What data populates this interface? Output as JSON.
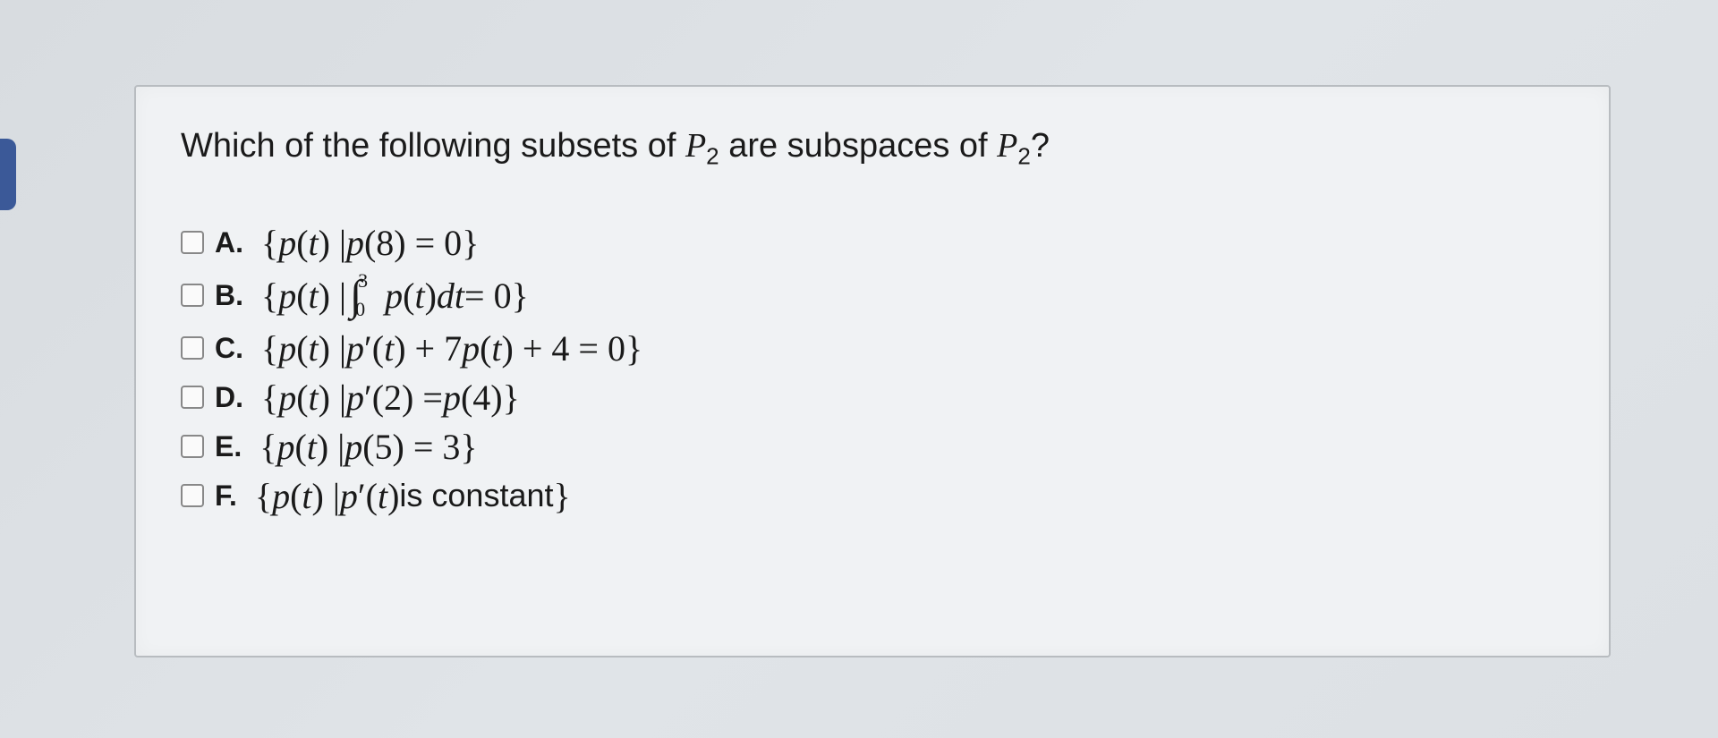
{
  "colors": {
    "background": "#e0e4e8",
    "box_bg": "#f0f2f4",
    "box_border": "#b8bcc0",
    "text": "#1a1a1a",
    "checkbox_border": "#888888",
    "left_indicator": "#3b5998"
  },
  "typography": {
    "question_fontsize": 38,
    "option_label_fontsize": 32,
    "option_math_fontsize": 40,
    "font_family_sans": "Arial",
    "font_family_serif": "Times New Roman"
  },
  "question": {
    "prefix": "Which of the following subsets of ",
    "set1_var": "P",
    "set1_sub": "2",
    "middle": " are subspaces of ",
    "set2_var": "P",
    "set2_sub": "2",
    "suffix": "?"
  },
  "options": {
    "A": {
      "label": "A.",
      "open": "{",
      "p": "p",
      "t1": "(",
      "tvar1": "t",
      "t2": ") | ",
      "p2": "p",
      "arg": "(8) = 0",
      "close": "}"
    },
    "B": {
      "label": "B.",
      "open": "{",
      "p": "p",
      "t1": "(",
      "tvar1": "t",
      "t2": ") |  ",
      "int_upper": "3",
      "int_lower": "0",
      "p2": "p",
      "t3": "(",
      "tvar2": "t",
      "t4": ")",
      "d": "d",
      "tvar3": "t",
      "eq": " = 0",
      "close": "}"
    },
    "C": {
      "label": "C.",
      "open": "{",
      "p": "p",
      "t1": "(",
      "tvar1": "t",
      "t2": ") | ",
      "p2": "p",
      "prime1": "′",
      "t3": "(",
      "tvar2": "t",
      "t4": ") + 7",
      "p3": "p",
      "t5": "(",
      "tvar3": "t",
      "t6": ") + 4 = 0",
      "close": "}"
    },
    "D": {
      "label": "D.",
      "open": "{",
      "p": "p",
      "t1": "(",
      "tvar1": "t",
      "t2": ") | ",
      "p2": "p",
      "prime1": "′",
      "arg1": "(2) = ",
      "p3": "p",
      "arg2": "(4)",
      "close": "}"
    },
    "E": {
      "label": "E.",
      "open": "{",
      "p": "p",
      "t1": "(",
      "tvar1": "t",
      "t2": ") | ",
      "p2": "p",
      "arg": "(5) = 3",
      "close": "}"
    },
    "F": {
      "label": "F.",
      "open": "{",
      "p": "p",
      "t1": "(",
      "tvar1": "t",
      "t2": ") | ",
      "p2": "p",
      "prime1": "′",
      "t3": "(",
      "tvar2": "t",
      "t4": ") ",
      "text": "is constant ",
      "close": "}"
    }
  }
}
